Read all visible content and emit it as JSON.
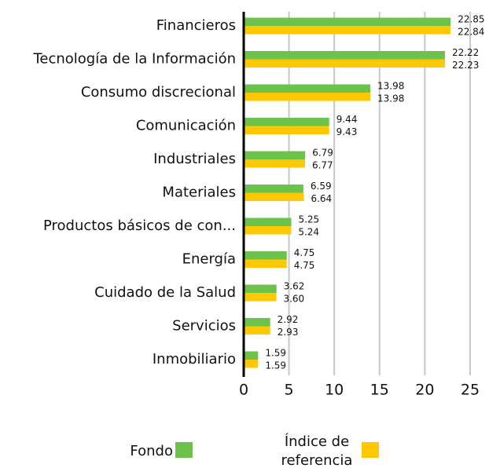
{
  "chart_data": {
    "type": "bar",
    "orientation": "horizontal",
    "categories": [
      "Financieros",
      "Tecnología de la Información",
      "Consumo discrecional",
      "Comunicación",
      "Industriales",
      "Materiales",
      "Productos básicos de con...",
      "Energía",
      "Cuidado de la Salud",
      "Servicios",
      "Inmobiliario"
    ],
    "series": [
      {
        "name": "Fondo",
        "color": "#6cc24a",
        "values": [
          22.85,
          22.22,
          13.98,
          9.44,
          6.79,
          6.59,
          5.25,
          4.75,
          3.62,
          2.92,
          1.59
        ],
        "value_labels": [
          "22.85",
          "22.22",
          "13.98",
          "9.44",
          "6.79",
          "6.59",
          "5.25",
          "4.75",
          "3.62",
          "2.92",
          "1.59"
        ]
      },
      {
        "name": "Índice de referencia",
        "color": "#ffc800",
        "values": [
          22.84,
          22.23,
          13.98,
          9.43,
          6.77,
          6.64,
          5.24,
          4.75,
          3.6,
          2.93,
          1.59
        ],
        "value_labels": [
          "22.84",
          "22.23",
          "13.98",
          "9.43",
          "6.77",
          "6.64",
          "5.24",
          "4.75",
          "3.60",
          "2.93",
          "1.59"
        ]
      }
    ],
    "xlim": [
      0,
      27
    ],
    "xticks": [
      0,
      5,
      10,
      15,
      20,
      25
    ],
    "grid": true,
    "legend": "bottom"
  }
}
